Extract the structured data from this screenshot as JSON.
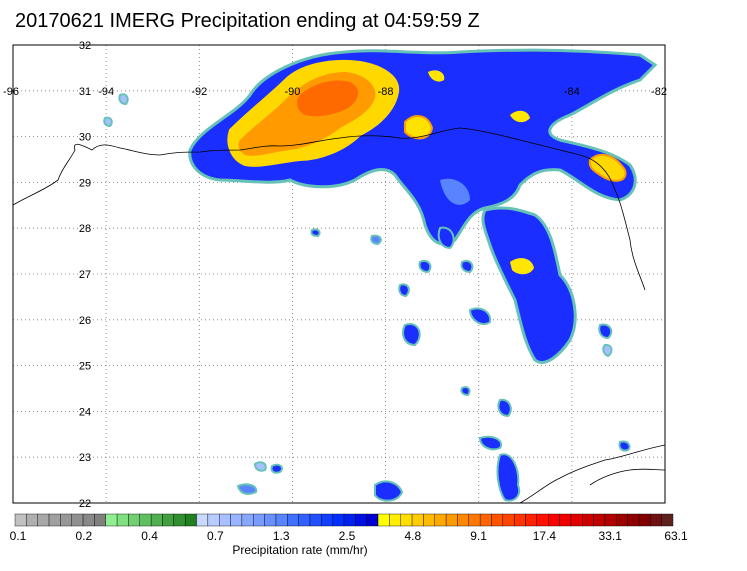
{
  "title": "20170621 IMERG Precipitation ending at 04:59:59 Z",
  "map": {
    "lon_range": [
      -96,
      -82
    ],
    "lat_range": [
      22,
      32
    ],
    "lon_ticks": [
      {
        "value": -96,
        "label": "-96"
      },
      {
        "value": -94,
        "label": "-94"
      },
      {
        "value": -92,
        "label": "-92"
      },
      {
        "value": -90,
        "label": "-90"
      },
      {
        "value": -88,
        "label": "-88"
      },
      {
        "value": -84,
        "label": "-84"
      },
      {
        "value": -82,
        "label": "-82"
      }
    ],
    "lat_ticks": [
      {
        "value": 32,
        "label": "32"
      },
      {
        "value": 31,
        "label": "31"
      },
      {
        "value": 30,
        "label": "30"
      },
      {
        "value": 29,
        "label": "29"
      },
      {
        "value": 28,
        "label": "28"
      },
      {
        "value": 27,
        "label": "27"
      },
      {
        "value": 26,
        "label": "26"
      },
      {
        "value": 25,
        "label": "25"
      },
      {
        "value": 24,
        "label": "24"
      },
      {
        "value": 23,
        "label": "23"
      },
      {
        "value": 22,
        "label": "22"
      }
    ],
    "grid": true,
    "grid_style": "dotted"
  },
  "colorbar": {
    "colors": [
      "#c0c0c0",
      "#b0b0b0",
      "#a8a8a8",
      "#a0a0a0",
      "#989898",
      "#909090",
      "#888888",
      "#808080",
      "#90ee90",
      "#80e080",
      "#70d070",
      "#60c060",
      "#50b050",
      "#40a040",
      "#309030",
      "#208020",
      "#c8d8ff",
      "#b8ccff",
      "#a8c0ff",
      "#98b4ff",
      "#88a8ff",
      "#789cff",
      "#6890ff",
      "#5884ff",
      "#4070ff",
      "#3060ff",
      "#2050ff",
      "#1040ff",
      "#0030ff",
      "#0020f0",
      "#0010e0",
      "#0000d0",
      "#ffff00",
      "#ffee00",
      "#ffdd00",
      "#ffcc00",
      "#ffbb00",
      "#ffaa00",
      "#ff9900",
      "#ff8800",
      "#ff7700",
      "#ff6600",
      "#ff5500",
      "#ff4400",
      "#ff3300",
      "#ff2200",
      "#ff1100",
      "#ff0000",
      "#f00000",
      "#e00000",
      "#d00000",
      "#c00000",
      "#b00000",
      "#a00000",
      "#900000",
      "#800000",
      "#701010",
      "#602020"
    ],
    "tick_labels": [
      "0.1",
      "0.2",
      "0.4",
      "0.7",
      "1.3",
      "2.5",
      "4.8",
      "9.1",
      "17.4",
      "33.1",
      "63.1"
    ],
    "label": "Precipitation rate (mm/hr)"
  }
}
